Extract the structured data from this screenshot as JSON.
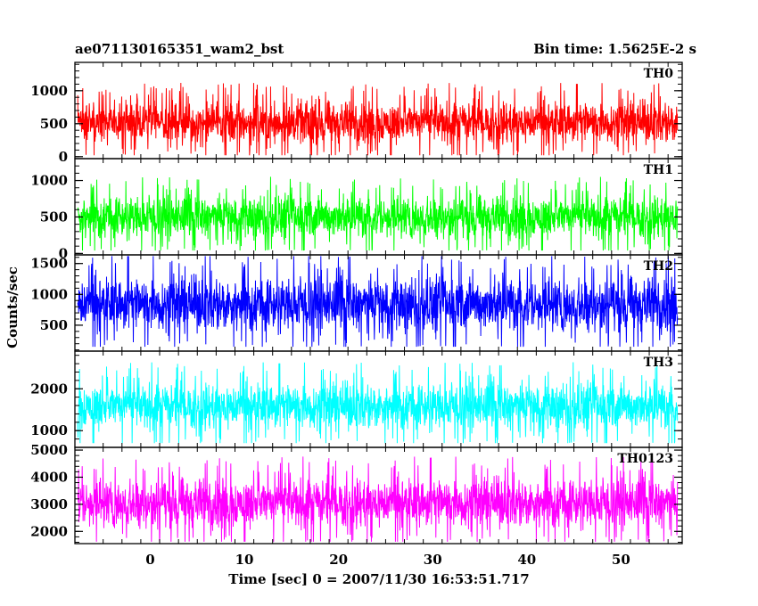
{
  "chart_data": {
    "type": "line",
    "header_left": "ae071130165351_wam2_bst",
    "header_right": "Bin time: 1.5625E-2 s",
    "xlabel": "Time [sec] 0 = 2007/11/30 16:53:51.717",
    "ylabel": "Counts/sec",
    "xlim": [
      -8,
      56.5
    ],
    "x_ticks": [
      0,
      10,
      20,
      30,
      40,
      50
    ],
    "x_range_data": [
      -7.7,
      56.0
    ],
    "series": [
      {
        "name": "TH0",
        "color": "#ff0000",
        "ylim": [
          -30,
          1430
        ],
        "y_ticks": [
          0,
          500,
          1000
        ],
        "mean": 520,
        "min": 20,
        "max": 1420
      },
      {
        "name": "TH1",
        "color": "#00ff00",
        "ylim": [
          -20,
          1300
        ],
        "y_ticks": [
          0,
          500,
          1000
        ],
        "mean": 500,
        "min": 40,
        "max": 1300
      },
      {
        "name": "TH2",
        "color": "#0000ff",
        "ylim": [
          80,
          1640
        ],
        "y_ticks": [
          500,
          1000,
          1500
        ],
        "mean": 840,
        "min": 150,
        "max": 1620
      },
      {
        "name": "TH3",
        "color": "#00ffff",
        "ylim": [
          600,
          2900
        ],
        "y_ticks": [
          1000,
          2000
        ],
        "mean": 1580,
        "min": 700,
        "max": 2880
      },
      {
        "name": "TH0123",
        "color": "#ff00ff",
        "ylim": [
          1550,
          5100
        ],
        "y_ticks": [
          2000,
          3000,
          4000,
          5000
        ],
        "mean": 3050,
        "min": 1620,
        "max": 4950
      }
    ]
  }
}
